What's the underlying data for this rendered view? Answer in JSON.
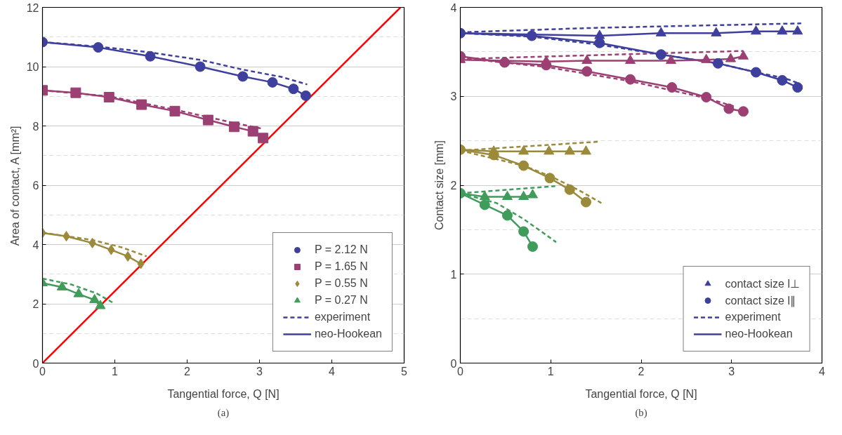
{
  "chart_data": [
    {
      "type": "line",
      "xlabel": "Tangential force, Q [N]",
      "ylabel": "Area of contact, A [mm²]",
      "annotations": [
        "(a)"
      ],
      "xlim": [
        0,
        5
      ],
      "ylim": [
        0,
        12
      ],
      "xticks": [
        0,
        1,
        2,
        3,
        4,
        5
      ],
      "yticks": [
        0,
        {
          "value": 1,
          "label": null
        },
        2,
        {
          "value": 3,
          "label": null
        },
        4,
        {
          "value": 5,
          "label": null
        },
        6,
        {
          "value": 7,
          "label": null
        },
        8,
        {
          "value": 9,
          "label": null
        },
        10,
        {
          "value": 11,
          "label": null
        },
        12
      ],
      "grid": "y",
      "legend": "bottom right",
      "series": [
        {
          "name": "P = 2.12 N",
          "type": "scatter",
          "marker": "circle",
          "color": "#3f3f9e",
          "x": [
            0,
            0.77,
            1.49,
            2.18,
            2.77,
            3.18,
            3.47,
            3.64
          ],
          "values": [
            10.83,
            10.65,
            10.35,
            10.0,
            9.67,
            9.47,
            9.25,
            9.02
          ]
        },
        {
          "name": "P = 1.65 N",
          "type": "scatter",
          "marker": "square",
          "color": "#9c3f73",
          "x": [
            0,
            0.46,
            0.92,
            1.37,
            1.83,
            2.29,
            2.65,
            2.91,
            3.05
          ],
          "values": [
            9.2,
            9.12,
            8.97,
            8.72,
            8.5,
            8.2,
            7.97,
            7.82,
            7.59
          ]
        },
        {
          "name": "P = 0.55 N",
          "type": "scatter",
          "marker": "diamond",
          "color": "#9a8a3a",
          "x": [
            0,
            0.33,
            0.69,
            0.95,
            1.18,
            1.36
          ],
          "values": [
            4.39,
            4.28,
            4.05,
            3.82,
            3.6,
            3.35
          ]
        },
        {
          "name": "P = 0.27 N",
          "type": "scatter",
          "marker": "triangle",
          "color": "#3f9c5a",
          "x": [
            0,
            0.27,
            0.5,
            0.72,
            0.8
          ],
          "values": [
            2.7,
            2.56,
            2.33,
            2.13,
            1.93
          ]
        },
        {
          "name": "experiment",
          "line_style": "dashed",
          "color": "#3f3f9e",
          "x": [
            0,
            0.77,
            1.49,
            2.18,
            2.77,
            3.31,
            3.66
          ],
          "values": [
            10.83,
            10.68,
            10.48,
            10.23,
            9.9,
            9.65,
            9.4
          ]
        },
        {
          "line_style": "dashed",
          "color": "#9c3f73",
          "x": [
            0,
            0.92,
            1.83,
            2.65,
            3.05
          ],
          "values": [
            9.2,
            9.0,
            8.55,
            8.1,
            7.9
          ]
        },
        {
          "line_style": "dashed",
          "color": "#9a8a3a",
          "x": [
            0,
            0.7,
            1.1,
            1.44
          ],
          "values": [
            4.4,
            4.15,
            3.9,
            3.6
          ]
        },
        {
          "line_style": "dashed",
          "color": "#3f9c5a",
          "x": [
            0,
            0.4,
            0.75,
            1.0
          ],
          "values": [
            2.85,
            2.65,
            2.35,
            2.0
          ]
        },
        {
          "name": "neo-Hookean",
          "line_style": "solid",
          "color": "#3f3f9e",
          "x": [
            0,
            0.77,
            1.49,
            2.18,
            2.77,
            3.18,
            3.47,
            3.64
          ],
          "values": [
            10.83,
            10.65,
            10.35,
            10.0,
            9.67,
            9.47,
            9.25,
            9.02
          ]
        },
        {
          "line_style": "solid",
          "color": "#9c3f73",
          "x": [
            0,
            0.46,
            0.92,
            1.37,
            1.83,
            2.29,
            2.65,
            2.91,
            3.05
          ],
          "values": [
            9.2,
            9.12,
            8.97,
            8.72,
            8.5,
            8.2,
            7.97,
            7.82,
            7.59
          ]
        },
        {
          "line_style": "solid",
          "color": "#9a8a3a",
          "x": [
            0,
            0.33,
            0.69,
            0.95,
            1.18,
            1.36
          ],
          "values": [
            4.39,
            4.28,
            4.05,
            3.82,
            3.6,
            3.35
          ]
        },
        {
          "line_style": "solid",
          "color": "#3f9c5a",
          "x": [
            0,
            0.27,
            0.5,
            0.72,
            0.8
          ],
          "values": [
            2.7,
            2.56,
            2.33,
            2.13,
            1.93
          ]
        },
        {
          "line_style": "solid",
          "color": "#ff0000",
          "x": [
            0,
            4.95
          ],
          "values": [
            0,
            12
          ]
        }
      ]
    },
    {
      "type": "line",
      "xlabel": "Tangential force, Q [N]",
      "ylabel": "Contact size [mm]",
      "annotations": [
        "(b)"
      ],
      "xlim": [
        0,
        4
      ],
      "ylim": [
        0,
        4
      ],
      "xticks": [
        0,
        1,
        2,
        3,
        4
      ],
      "yticks": [
        0,
        {
          "value": 0.5,
          "label": null
        },
        1,
        {
          "value": 1.5,
          "label": null
        },
        2,
        {
          "value": 2.5,
          "label": null
        },
        3,
        {
          "value": 3.5,
          "label": null
        },
        4
      ],
      "grid": "y",
      "legend": "bottom right",
      "series": [
        {
          "name": "contact size l⊥",
          "type": "scatter",
          "marker": "triangle",
          "color": "#3f3f9e",
          "x": [
            1.54,
            2.22,
            2.83,
            3.27,
            3.56,
            3.73
          ],
          "values": [
            3.68,
            3.71,
            3.71,
            3.73,
            3.73,
            3.73
          ]
        },
        {
          "name": "contact size l∥",
          "type": "scatter",
          "marker": "circle",
          "color": "#3f3f9e",
          "x": [
            0,
            0.79,
            1.54,
            2.22,
            2.85,
            3.27,
            3.56,
            3.73
          ],
          "values": [
            3.71,
            3.68,
            3.6,
            3.47,
            3.37,
            3.27,
            3.18,
            3.1
          ]
        },
        {
          "type": "scatter",
          "marker": "triangle",
          "color": "#9c3f73",
          "x": [
            0,
            0.95,
            1.4,
            1.88,
            2.33,
            2.72,
            2.99,
            3.13
          ],
          "values": [
            3.41,
            3.39,
            3.4,
            3.4,
            3.4,
            3.41,
            3.42,
            3.45
          ]
        },
        {
          "type": "scatter",
          "marker": "circle",
          "color": "#9c3f73",
          "x": [
            0,
            0.49,
            0.95,
            1.4,
            1.88,
            2.34,
            2.72,
            2.97,
            3.13
          ],
          "values": [
            3.45,
            3.38,
            3.35,
            3.28,
            3.19,
            3.1,
            2.99,
            2.86,
            2.83
          ]
        },
        {
          "type": "scatter",
          "marker": "triangle",
          "color": "#9a8a3a",
          "x": [
            0.37,
            0.7,
            0.98,
            1.21,
            1.39
          ],
          "values": [
            2.38,
            2.38,
            2.38,
            2.38,
            2.38
          ]
        },
        {
          "type": "scatter",
          "marker": "circle",
          "color": "#9a8a3a",
          "x": [
            0,
            0.37,
            0.7,
            0.99,
            1.21,
            1.39
          ],
          "values": [
            2.4,
            2.34,
            2.22,
            2.08,
            1.95,
            1.81
          ]
        },
        {
          "type": "scatter",
          "marker": "triangle",
          "color": "#3f9c5a",
          "x": [
            0.27,
            0.52,
            0.7,
            0.8
          ],
          "values": [
            1.87,
            1.87,
            1.87,
            1.89
          ]
        },
        {
          "type": "scatter",
          "marker": "circle",
          "color": "#3f9c5a",
          "x": [
            0,
            0.27,
            0.52,
            0.7,
            0.8
          ],
          "values": [
            1.91,
            1.78,
            1.66,
            1.48,
            1.31
          ]
        },
        {
          "name": "experiment",
          "line_style": "dashed",
          "color": "#3f3f9e",
          "x": [
            0,
            1.5,
            3.77
          ],
          "values": [
            3.72,
            3.77,
            3.82
          ]
        },
        {
          "line_style": "dashed",
          "color": "#3f3f9e",
          "x": [
            0,
            0.79,
            1.54,
            2.22,
            2.85,
            3.27,
            3.6,
            3.73
          ],
          "values": [
            3.71,
            3.67,
            3.58,
            3.47,
            3.37,
            3.27,
            3.2,
            3.15
          ]
        },
        {
          "line_style": "dashed",
          "color": "#9c3f73",
          "x": [
            0,
            3.13
          ],
          "values": [
            3.42,
            3.51
          ]
        },
        {
          "line_style": "dashed",
          "color": "#9c3f73",
          "x": [
            0,
            0.95,
            1.88,
            2.72,
            3.05
          ],
          "values": [
            3.43,
            3.33,
            3.17,
            2.98,
            2.88
          ]
        },
        {
          "line_style": "dashed",
          "color": "#9a8a3a",
          "x": [
            0,
            1.54
          ],
          "values": [
            2.39,
            2.49
          ]
        },
        {
          "line_style": "dashed",
          "color": "#9a8a3a",
          "x": [
            0,
            0.7,
            1.0,
            1.3,
            1.56
          ],
          "values": [
            2.39,
            2.22,
            2.1,
            1.95,
            1.8
          ]
        },
        {
          "line_style": "dashed",
          "color": "#3f9c5a",
          "x": [
            0,
            1.05
          ],
          "values": [
            1.91,
            1.99
          ]
        },
        {
          "line_style": "dashed",
          "color": "#3f9c5a",
          "x": [
            0,
            0.4,
            0.7,
            1.06
          ],
          "values": [
            1.91,
            1.8,
            1.62,
            1.36
          ]
        },
        {
          "name": "neo-Hookean",
          "line_style": "solid",
          "color": "#3f3f9e",
          "x": [
            0,
            1.54,
            2.22,
            2.83,
            3.27,
            3.56,
            3.73
          ],
          "values": [
            3.71,
            3.68,
            3.71,
            3.71,
            3.73,
            3.73,
            3.73
          ]
        },
        {
          "line_style": "solid",
          "color": "#3f3f9e",
          "x": [
            0,
            0.79,
            1.54,
            2.22,
            2.85,
            3.27,
            3.56,
            3.73
          ],
          "values": [
            3.71,
            3.68,
            3.6,
            3.47,
            3.37,
            3.27,
            3.18,
            3.1
          ]
        },
        {
          "line_style": "solid",
          "color": "#9c3f73",
          "x": [
            0,
            0.95,
            1.4,
            1.88,
            2.33,
            2.72,
            2.99,
            3.13
          ],
          "values": [
            3.41,
            3.39,
            3.4,
            3.4,
            3.4,
            3.41,
            3.42,
            3.45
          ]
        },
        {
          "line_style": "solid",
          "color": "#9c3f73",
          "x": [
            0,
            0.49,
            0.95,
            1.4,
            1.88,
            2.34,
            2.72,
            2.97,
            3.13
          ],
          "values": [
            3.45,
            3.38,
            3.35,
            3.28,
            3.19,
            3.1,
            2.99,
            2.86,
            2.83
          ]
        },
        {
          "line_style": "solid",
          "color": "#9a8a3a",
          "x": [
            0,
            0.37,
            0.7,
            0.98,
            1.21,
            1.39
          ],
          "values": [
            2.4,
            2.38,
            2.38,
            2.38,
            2.38,
            2.38
          ]
        },
        {
          "line_style": "solid",
          "color": "#9a8a3a",
          "x": [
            0,
            0.37,
            0.7,
            0.99,
            1.21,
            1.39
          ],
          "values": [
            2.4,
            2.34,
            2.22,
            2.08,
            1.95,
            1.81
          ]
        },
        {
          "line_style": "solid",
          "color": "#3f9c5a",
          "x": [
            0,
            0.27,
            0.52,
            0.7,
            0.8
          ],
          "values": [
            1.91,
            1.87,
            1.87,
            1.87,
            1.89
          ]
        },
        {
          "line_style": "solid",
          "color": "#3f9c5a",
          "x": [
            0,
            0.27,
            0.52,
            0.7,
            0.8
          ],
          "values": [
            1.91,
            1.78,
            1.66,
            1.48,
            1.31
          ]
        }
      ]
    }
  ]
}
